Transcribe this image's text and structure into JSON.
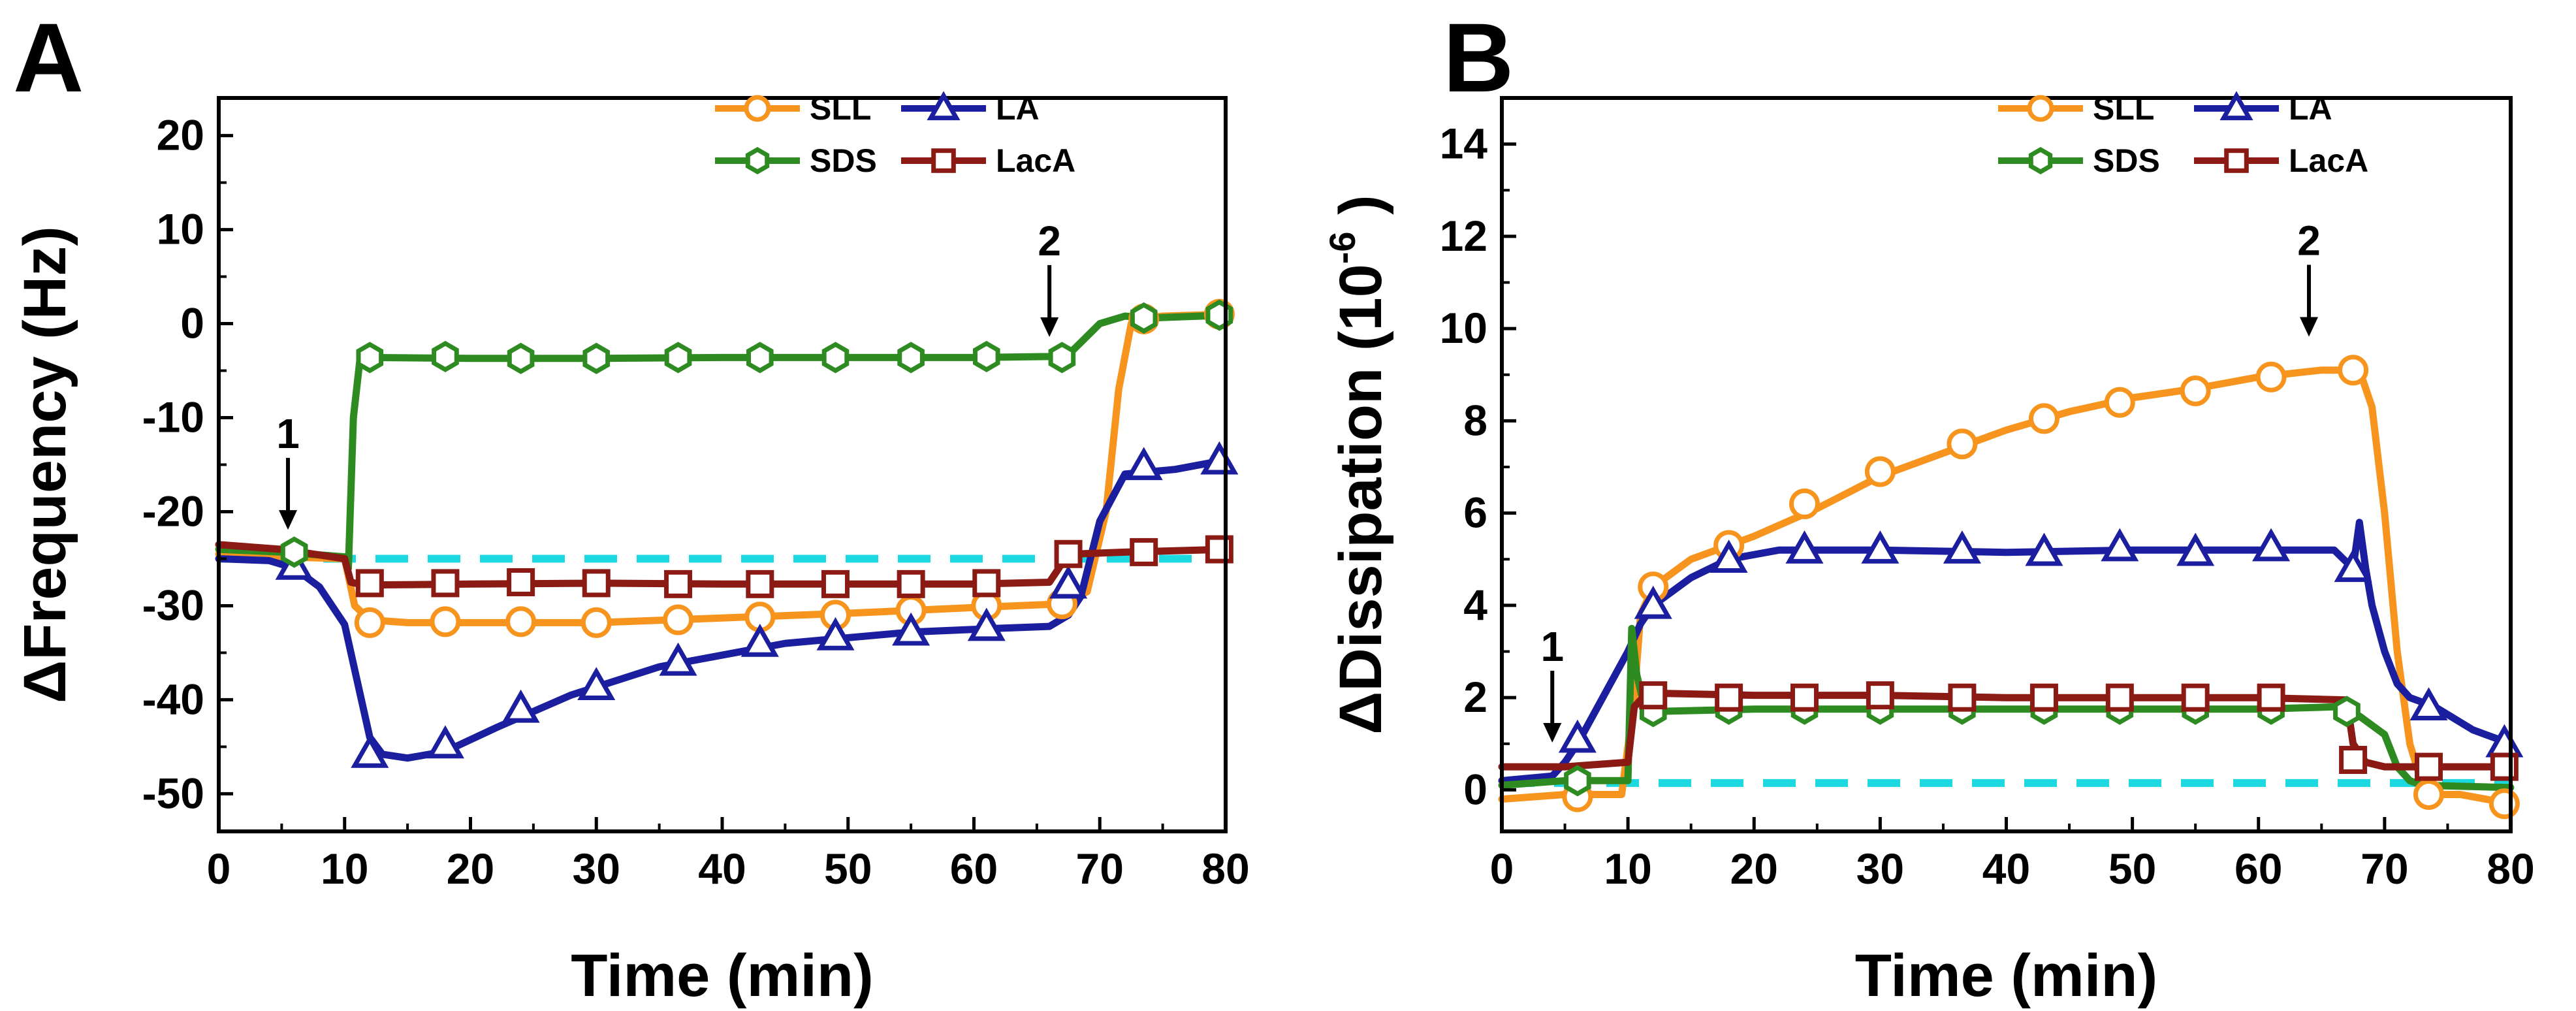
{
  "figure": {
    "colors": {
      "SLL": "#F7941D",
      "LA": "#1B1F9F",
      "SDS": "#2E8B22",
      "LacA": "#8B1A14",
      "baseline": "#1CD8E0"
    }
  },
  "chart_data": [
    {
      "panel": "A",
      "type": "line",
      "xlabel": "Time (min)",
      "ylabel": "ΔFrequency (Hz)",
      "xlim": [
        0,
        80
      ],
      "ylim": [
        -54,
        24
      ],
      "xticks": [
        0,
        10,
        20,
        30,
        40,
        50,
        60,
        70,
        80
      ],
      "yticks": [
        -50,
        -40,
        -30,
        -20,
        -10,
        0,
        10,
        20
      ],
      "grid": false,
      "legend": [
        "SLL",
        "LA",
        "SDS",
        "LacA"
      ],
      "legend_position": "top-right",
      "baseline": -25,
      "annotations": [
        {
          "text": "1",
          "x": 5.5,
          "y": -24
        },
        {
          "text": "2",
          "x": 66,
          "y": -3.5
        }
      ],
      "series": [
        {
          "name": "SLL",
          "marker": "circle",
          "x": [
            0,
            5,
            10,
            10.8,
            12,
            15,
            20,
            30,
            40,
            50,
            60,
            67,
            69,
            70.5,
            71.5,
            72.5,
            73.5,
            75,
            80
          ],
          "y": [
            -24.5,
            -24.8,
            -25,
            -30,
            -31.5,
            -31.8,
            -31.8,
            -31.8,
            -31.3,
            -30.8,
            -30.2,
            -29.8,
            -28.5,
            -20,
            -7,
            0,
            0.5,
            0.8,
            1
          ],
          "marker_x": [
            12,
            18,
            24,
            30,
            36.5,
            43,
            49,
            55,
            61,
            67,
            73.5,
            79.5
          ],
          "marker_y": [
            -31.8,
            -31.7,
            -31.7,
            -31.8,
            -31.5,
            -31.2,
            -31,
            -30.5,
            -30,
            -29.8,
            0.5,
            1
          ]
        },
        {
          "name": "LA",
          "marker": "triangle",
          "x": [
            0,
            4,
            6,
            8,
            10,
            11,
            12,
            13,
            15,
            18,
            22,
            28,
            35,
            45,
            55,
            62,
            66,
            67.5,
            68.5,
            70,
            72,
            76,
            80
          ],
          "y": [
            -25,
            -25.2,
            -26,
            -28,
            -32,
            -38,
            -44,
            -45.8,
            -46.2,
            -45.5,
            -43,
            -39.5,
            -36.5,
            -34,
            -32.8,
            -32.4,
            -32.2,
            -31,
            -29,
            -21,
            -16,
            -15.5,
            -14.5
          ],
          "marker_x": [
            6,
            12,
            18,
            24,
            30,
            36.5,
            43,
            49,
            55,
            61,
            67.5,
            73.5,
            79.5
          ],
          "marker_y": [
            -25.8,
            -45.8,
            -44.8,
            -41,
            -38.6,
            -36,
            -34,
            -33.3,
            -32.8,
            -32.3,
            -27.8,
            -15.2,
            -14.6
          ]
        },
        {
          "name": "SDS",
          "marker": "hexagon",
          "x": [
            0,
            5,
            10,
            10.3,
            10.7,
            11.2,
            12,
            20,
            30,
            40,
            50,
            60,
            66,
            67.5,
            68.5,
            70,
            72,
            74,
            80
          ],
          "y": [
            -24,
            -24.3,
            -24.8,
            -26,
            -10,
            -4,
            -3.6,
            -3.7,
            -3.7,
            -3.6,
            -3.6,
            -3.6,
            -3.5,
            -3.3,
            -2,
            0,
            0.8,
            0.6,
            0.9
          ],
          "marker_x": [
            6,
            12,
            18,
            24,
            30,
            36.5,
            43,
            49,
            55,
            61,
            67,
            73.5,
            79.5
          ],
          "marker_y": [
            -24.3,
            -3.6,
            -3.5,
            -3.7,
            -3.7,
            -3.6,
            -3.6,
            -3.6,
            -3.6,
            -3.5,
            -3.6,
            0.6,
            0.9
          ]
        },
        {
          "name": "LacA",
          "marker": "square",
          "x": [
            0,
            5,
            10,
            10.5,
            11.5,
            20,
            30,
            40,
            50,
            60,
            66,
            67,
            68,
            72,
            80
          ],
          "y": [
            -23.5,
            -24,
            -25,
            -27.5,
            -27.8,
            -27.7,
            -27.6,
            -27.7,
            -27.7,
            -27.7,
            -27.5,
            -25.5,
            -24.5,
            -24.3,
            -24
          ],
          "marker_x": [
            12,
            18,
            24,
            30,
            36.5,
            43,
            49,
            55,
            61,
            67.5,
            73.5,
            79.5
          ],
          "marker_y": [
            -27.6,
            -27.6,
            -27.5,
            -27.6,
            -27.7,
            -27.7,
            -27.7,
            -27.7,
            -27.6,
            -24.5,
            -24.3,
            -24
          ]
        }
      ]
    },
    {
      "panel": "B",
      "type": "line",
      "xlabel": "Time (min)",
      "ylabel": "ΔDissipation (10",
      "ylabel_superscript": "-6",
      "ylabel_close": ")",
      "xlim": [
        0,
        80
      ],
      "ylim": [
        -0.9,
        15
      ],
      "xticks": [
        0,
        10,
        20,
        30,
        40,
        50,
        60,
        70,
        80
      ],
      "yticks": [
        0,
        2,
        4,
        6,
        8,
        10,
        12,
        14
      ],
      "grid": false,
      "legend": [
        "SLL",
        "LA",
        "SDS",
        "LacA"
      ],
      "legend_position": "top-right",
      "baseline": 0.15,
      "annotations": [
        {
          "text": "1",
          "x": 4,
          "y": 0.6
        },
        {
          "text": "2",
          "x": 64,
          "y": 9.4
        }
      ],
      "series": [
        {
          "name": "SLL",
          "marker": "circle",
          "x": [
            0,
            5,
            6,
            9.5,
            10.5,
            11,
            12,
            15,
            20,
            25,
            30,
            35,
            40,
            45,
            50,
            55,
            60,
            65,
            68,
            69,
            70,
            71,
            72,
            73,
            74,
            76,
            80
          ],
          "y": [
            -0.2,
            -0.1,
            -0.1,
            -0.1,
            2,
            3.8,
            4.4,
            5,
            5.5,
            6.1,
            6.8,
            7.3,
            7.8,
            8.2,
            8.5,
            8.7,
            8.95,
            9.1,
            9.1,
            8.3,
            6,
            3,
            1,
            0.1,
            -0.1,
            -0.1,
            -0.3
          ],
          "marker_x": [
            6,
            12,
            18,
            24,
            30,
            36.5,
            43,
            49,
            55,
            61,
            67.5,
            73.5,
            79.5
          ],
          "marker_y": [
            -0.15,
            4.4,
            5.3,
            6.2,
            6.9,
            7.5,
            8.05,
            8.4,
            8.65,
            8.95,
            9.1,
            -0.1,
            -0.3
          ]
        },
        {
          "name": "LA",
          "marker": "triangle",
          "x": [
            0,
            4,
            5,
            6,
            8,
            10,
            11,
            12,
            15,
            18,
            22,
            30,
            40,
            50,
            60,
            66,
            67.5,
            68,
            68.5,
            69,
            70,
            71,
            72,
            74,
            77,
            80
          ],
          "y": [
            0.2,
            0.3,
            0.6,
            1,
            2,
            3,
            3.6,
            4,
            4.6,
            5,
            5.2,
            5.2,
            5.15,
            5.2,
            5.2,
            5.2,
            4.8,
            5.8,
            4.8,
            4,
            3,
            2.3,
            2,
            1.8,
            1.3,
            1
          ],
          "marker_x": [
            6,
            12,
            18,
            24,
            30,
            36.5,
            43,
            49,
            55,
            61,
            67.5,
            73.5,
            79.5
          ],
          "marker_y": [
            1.1,
            4,
            5,
            5.2,
            5.2,
            5.2,
            5.15,
            5.25,
            5.15,
            5.25,
            4.8,
            1.8,
            1
          ]
        },
        {
          "name": "SDS",
          "marker": "hexagon",
          "x": [
            0,
            5,
            10,
            10.3,
            10.7,
            11.3,
            12,
            20,
            30,
            40,
            50,
            60,
            66,
            68,
            70,
            71,
            72,
            73,
            80
          ],
          "y": [
            0.1,
            0.2,
            0.2,
            3.5,
            2.5,
            1.8,
            1.7,
            1.75,
            1.75,
            1.75,
            1.75,
            1.75,
            1.8,
            1.6,
            1.2,
            0.5,
            0.2,
            0.1,
            0.05
          ],
          "marker_x": [
            6,
            12,
            18,
            24,
            30,
            36.5,
            43,
            49,
            55,
            61,
            67
          ],
          "marker_y": [
            0.2,
            1.7,
            1.75,
            1.75,
            1.75,
            1.75,
            1.75,
            1.75,
            1.75,
            1.75,
            1.7
          ]
        },
        {
          "name": "LacA",
          "marker": "square",
          "x": [
            0,
            5,
            10,
            10.5,
            11.5,
            20,
            30,
            40,
            50,
            60,
            67,
            67.5,
            68.5,
            70,
            80
          ],
          "y": [
            0.5,
            0.5,
            0.6,
            1.8,
            2.1,
            2.05,
            2.05,
            2.0,
            2.0,
            2.0,
            1.95,
            1,
            0.6,
            0.5,
            0.5
          ],
          "marker_x": [
            12,
            18,
            24,
            30,
            36.5,
            43,
            49,
            55,
            61,
            67.5,
            73.5,
            79.5
          ],
          "marker_y": [
            2.05,
            2,
            2,
            2.05,
            2,
            2,
            2,
            2,
            2,
            0.65,
            0.5,
            0.5
          ]
        }
      ]
    }
  ]
}
